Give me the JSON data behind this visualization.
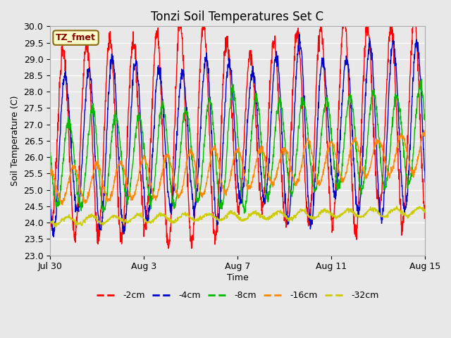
{
  "title": "Tonzi Soil Temperatures Set C",
  "xlabel": "Time",
  "ylabel": "Soil Temperature (C)",
  "ylim": [
    23.0,
    30.0
  ],
  "yticks": [
    23.0,
    23.5,
    24.0,
    24.5,
    25.0,
    25.5,
    26.0,
    26.5,
    27.0,
    27.5,
    28.0,
    28.5,
    29.0,
    29.5,
    30.0
  ],
  "annotation_text": "TZ_fmet",
  "annotation_color": "#8B0000",
  "annotation_bg": "#FFFFCC",
  "annotation_border": "#8B6914",
  "plot_bg": "#E8E8E8",
  "grid_color": "#FFFFFF",
  "colors": {
    "-2cm": "#FF0000",
    "-4cm": "#0000CC",
    "-8cm": "#00BB00",
    "-16cm": "#FF8800",
    "-32cm": "#CCCC00"
  },
  "legend_labels": [
    "-2cm",
    "-4cm",
    "-8cm",
    "-16cm",
    "-32cm"
  ],
  "xtick_labels": [
    "Jul 30",
    "Aug 3",
    "Aug 7",
    "Aug 11",
    "Aug 15"
  ],
  "xtick_day_offsets": [
    0,
    4,
    8,
    12,
    16
  ],
  "num_days": 17,
  "samples_per_day": 96,
  "series": {
    "-2cm": {
      "base": 26.5,
      "amp": 3.0,
      "phase_shift": 0.3,
      "trend": 0.04,
      "noise": 0.15
    },
    "-4cm": {
      "base": 26.3,
      "amp": 2.6,
      "phase_shift": 0.4,
      "trend": 0.04,
      "noise": 0.1
    },
    "-8cm": {
      "base": 25.8,
      "amp": 1.7,
      "phase_shift": 0.55,
      "trend": 0.05,
      "noise": 0.08
    },
    "-16cm": {
      "base": 25.1,
      "amp": 0.65,
      "phase_shift": 0.75,
      "trend": 0.065,
      "noise": 0.05
    },
    "-32cm": {
      "base": 24.05,
      "amp": 0.12,
      "phase_shift": 1.5,
      "trend": 0.018,
      "noise": 0.03
    }
  }
}
